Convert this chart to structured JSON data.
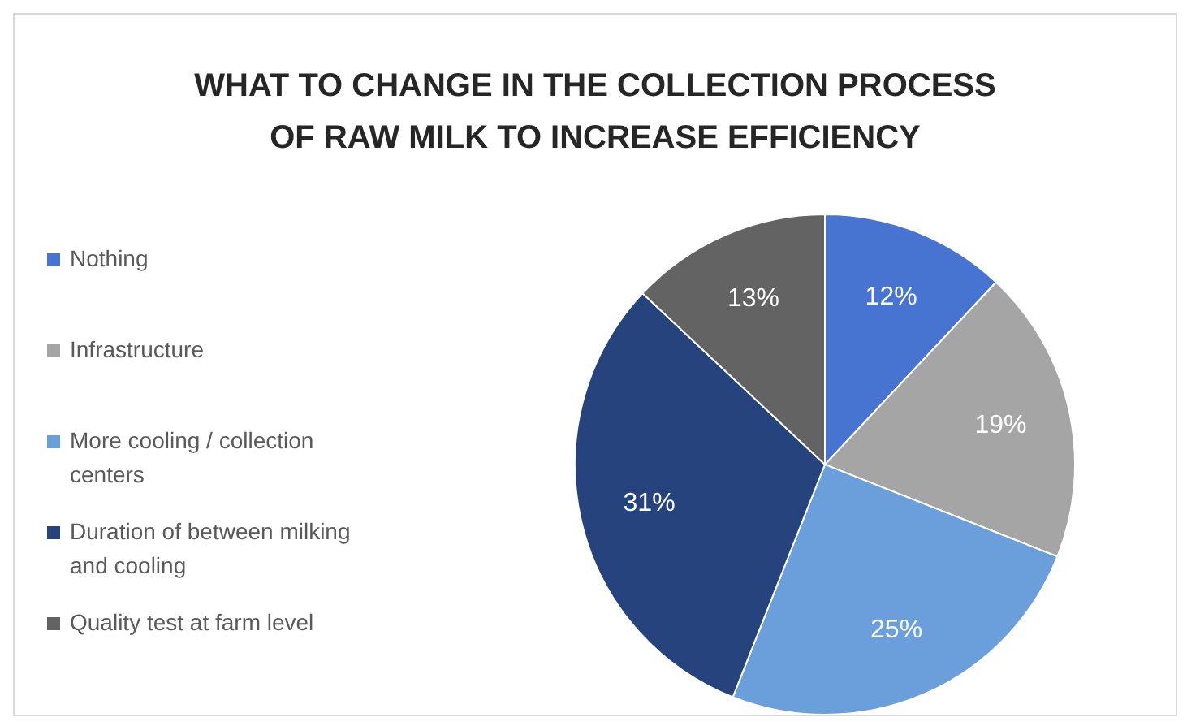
{
  "chart_data": {
    "type": "pie",
    "title": "WHAT TO CHANGE IN THE COLLECTION PROCESS OF RAW MILK TO INCREASE EFFICIENCY",
    "categories": [
      "Nothing",
      "Infrastructure",
      "More cooling / collection centers",
      "Duration of between milking and cooling",
      "Quality test at farm level"
    ],
    "values": [
      12,
      19,
      25,
      31,
      13
    ],
    "value_labels": [
      "12%",
      "19%",
      "25%",
      "31%",
      "13%"
    ],
    "colors": [
      "#4874d1",
      "#a5a5a5",
      "#6a9fdc",
      "#27437e",
      "#636363"
    ],
    "legend": "left"
  }
}
